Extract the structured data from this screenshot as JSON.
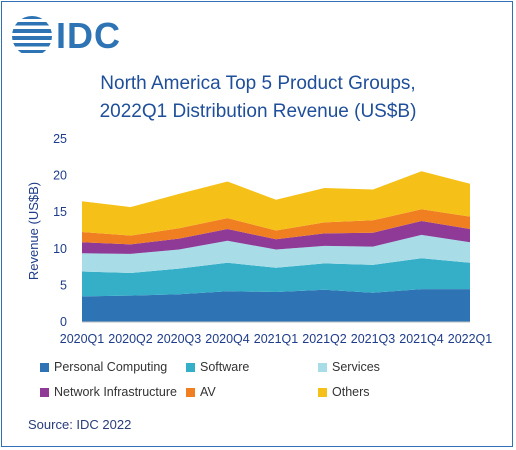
{
  "brand": {
    "name": "IDC"
  },
  "source": "Source: IDC 2022",
  "chart_data": {
    "type": "area",
    "stacked": true,
    "title": [
      "North America Top 5 Product Groups,",
      "2022Q1 Distribution Revenue (US$B)"
    ],
    "xlabel": "",
    "ylabel": "Revenue (US$B)",
    "ylim": [
      0,
      25
    ],
    "yticks": [
      "0",
      "5",
      "10",
      "15",
      "20",
      "25"
    ],
    "categories": [
      "2020Q1",
      "2020Q2",
      "2020Q3",
      "2020Q4",
      "2021Q1",
      "2021Q2",
      "2021Q3",
      "2021Q4",
      "2022Q1"
    ],
    "grid": false,
    "legend_position": "bottom",
    "series": [
      {
        "name": "Personal Computing",
        "color": "#2e74b5",
        "values": [
          3.5,
          3.6,
          3.8,
          4.2,
          4.1,
          4.4,
          4.0,
          4.5,
          4.5
        ]
      },
      {
        "name": "Software",
        "color": "#35aec8",
        "values": [
          3.4,
          3.1,
          3.5,
          3.9,
          3.3,
          3.6,
          3.8,
          4.2,
          3.6
        ]
      },
      {
        "name": "Services",
        "color": "#a8dde8",
        "values": [
          2.5,
          2.6,
          2.6,
          3.0,
          2.5,
          2.4,
          2.5,
          3.2,
          2.8
        ]
      },
      {
        "name": "Network Infrastructure",
        "color": "#8e3a96",
        "values": [
          1.5,
          1.3,
          1.5,
          1.6,
          1.4,
          1.7,
          1.9,
          1.9,
          1.8
        ]
      },
      {
        "name": "AV",
        "color": "#f07f22",
        "values": [
          1.4,
          1.2,
          1.4,
          1.5,
          1.2,
          1.5,
          1.7,
          1.6,
          1.7
        ]
      },
      {
        "name": "Others",
        "color": "#f5c118",
        "values": [
          4.2,
          3.9,
          4.7,
          5.0,
          4.2,
          4.7,
          4.2,
          5.2,
          4.5
        ]
      }
    ]
  }
}
